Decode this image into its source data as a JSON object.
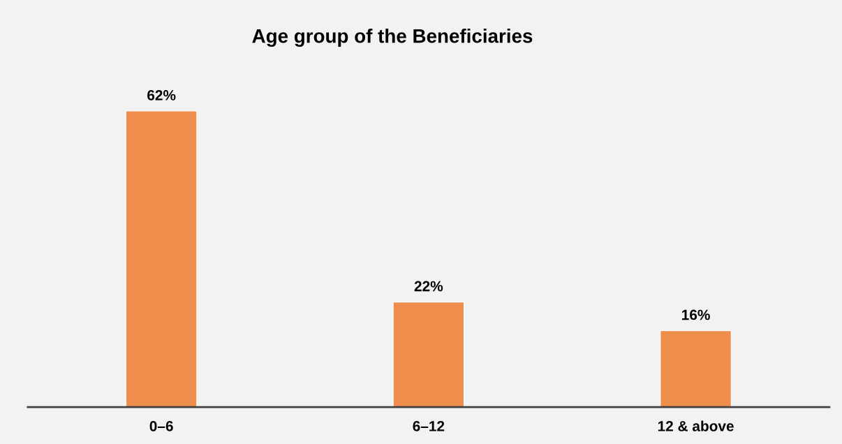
{
  "chart_data": {
    "type": "bar",
    "title": "Age group of the Beneficiaries",
    "categories": [
      "0–6",
      "6–12",
      "12 & above"
    ],
    "values": [
      62,
      22,
      16
    ],
    "color": "#ee8d4c",
    "value_labels": [
      "62%",
      "22%",
      "16%"
    ],
    "grid": false,
    "legend": false
  }
}
